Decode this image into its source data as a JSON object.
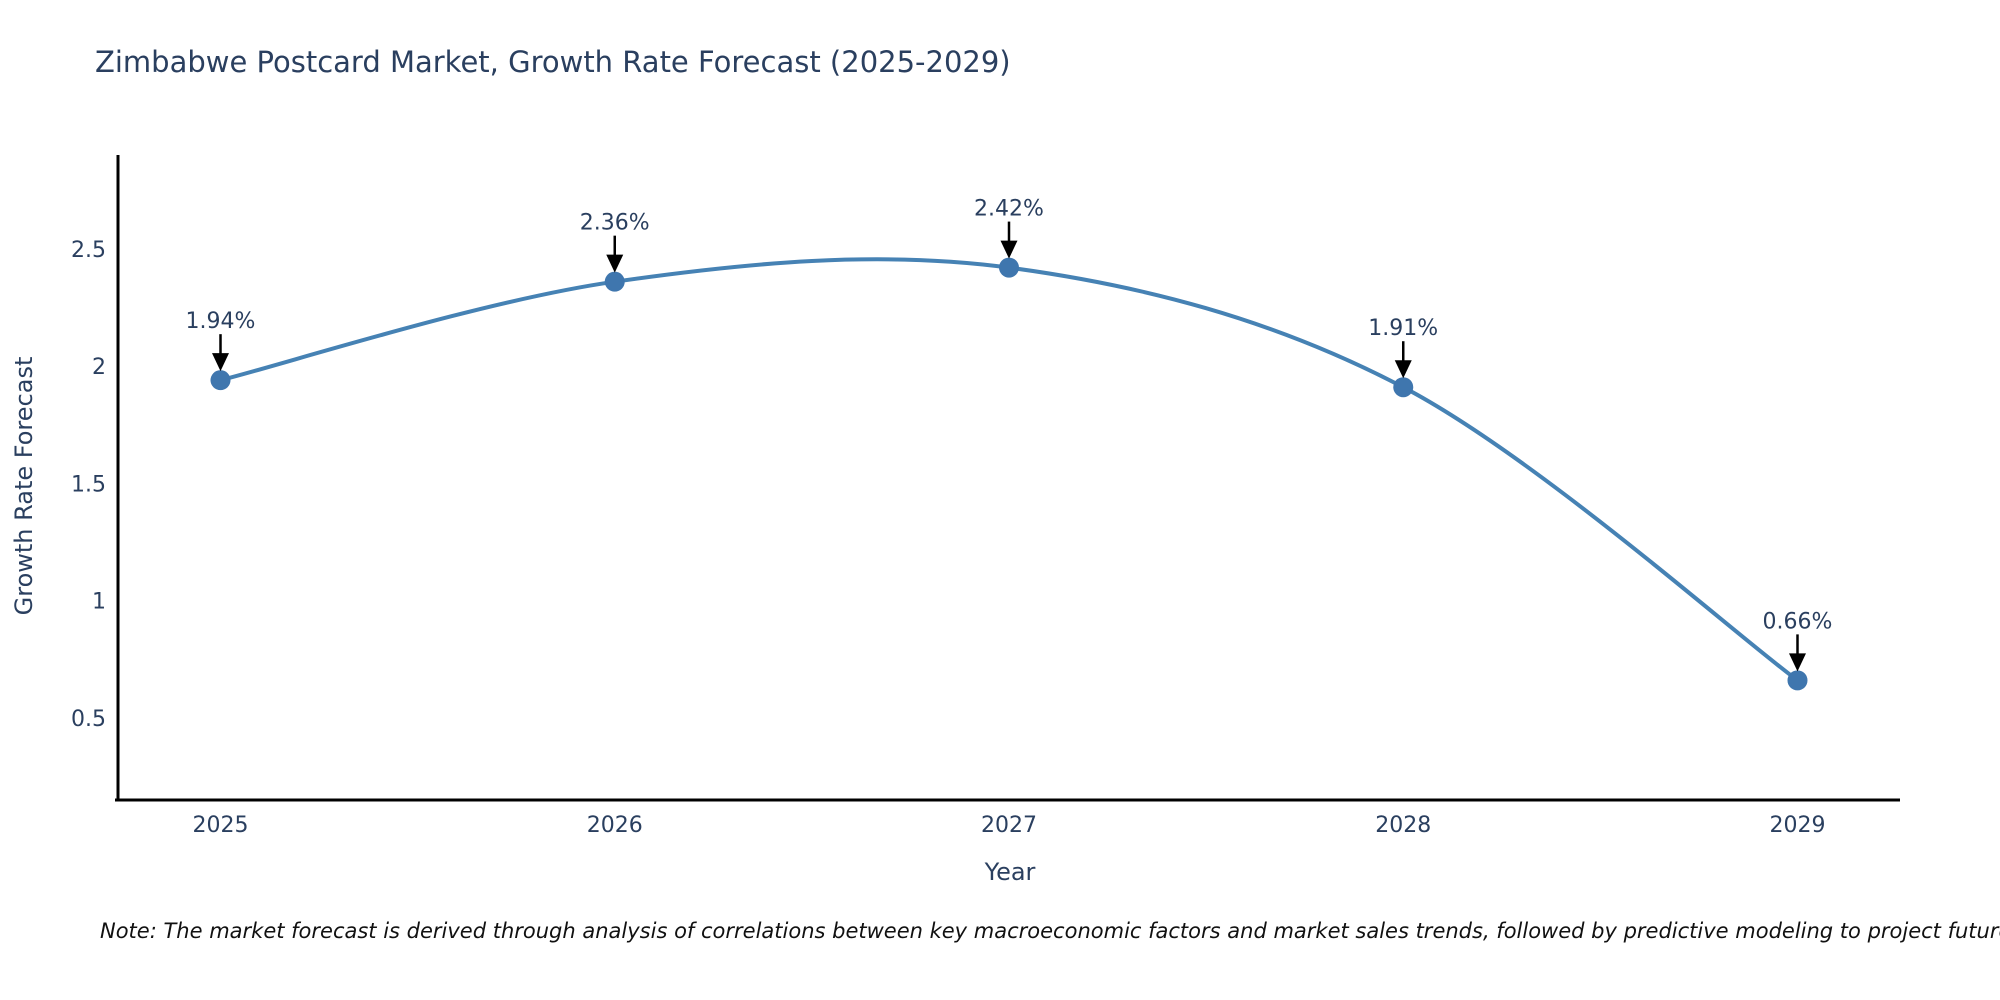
{
  "chart_data": {
    "type": "line",
    "title": "Zimbabwe Postcard Market, Growth Rate Forecast (2025-2029)",
    "xlabel": "Year",
    "ylabel": "Growth Rate Forecast",
    "x": [
      2025,
      2026,
      2027,
      2028,
      2029
    ],
    "series": [
      {
        "name": "Growth Rate Forecast",
        "values": [
          1.94,
          2.36,
          2.42,
          1.91,
          0.66
        ],
        "point_labels": [
          "1.94%",
          "2.36%",
          "2.42%",
          "1.91%",
          "0.66%"
        ]
      }
    ],
    "line_shape": "spline",
    "markers": true,
    "point_annotations_with_arrows": true,
    "grid": false,
    "legend": "none",
    "xlim": [
      2024.74,
      2029.26
    ],
    "ylim": [
      0.15,
      2.9
    ],
    "xticks": {
      "values": [
        2025,
        2026,
        2027,
        2028,
        2029
      ],
      "labels": [
        "2025",
        "2026",
        "2027",
        "2028",
        "2029"
      ]
    },
    "yticks": {
      "values": [
        0.5,
        1,
        1.5,
        2,
        2.5
      ],
      "labels": [
        "0.5",
        "1",
        "1.5",
        "2",
        "2.5"
      ]
    },
    "colors": {
      "line": "#4682b4",
      "marker": "#3f76ae",
      "axis_line": "#000000",
      "text": "#2a3f5f",
      "arrow": "#000000",
      "background": "#ffffff"
    }
  },
  "footnote": {
    "text": "Note: The market forecast is derived through analysis of correlations between key macroeconomic factors and market sales trends, followed by predictive modeling to project future sales"
  }
}
